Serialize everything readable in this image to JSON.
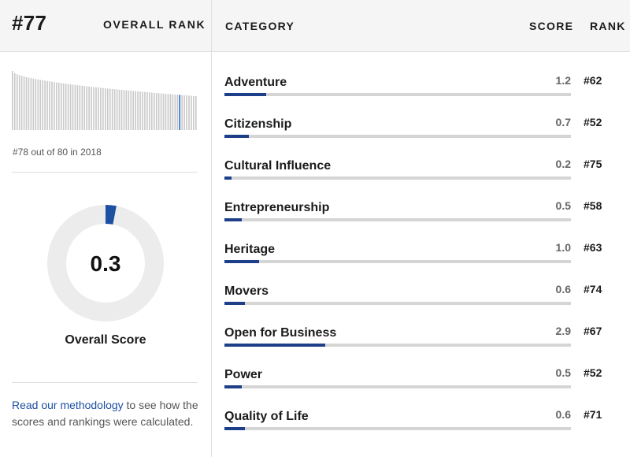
{
  "header": {
    "rank": "#77",
    "overall_rank_label": "OVERALL RANK",
    "category_label": "CATEGORY",
    "score_label": "SCORE",
    "rank_label": "RANK"
  },
  "left": {
    "histogram_caption": "#78 out of 80 in 2018",
    "histogram": {
      "total": 80,
      "highlight_position": 72
    },
    "score_value": "0.3",
    "score_fraction": 0.03,
    "score_label": "Overall Score",
    "methodology_link": "Read our methodology",
    "methodology_text": " to see how the scores and rankings were calculated."
  },
  "categories": [
    {
      "name": "Adventure",
      "score": "1.2",
      "rank": "#62",
      "fill": 0.12
    },
    {
      "name": "Citizenship",
      "score": "0.7",
      "rank": "#52",
      "fill": 0.07
    },
    {
      "name": "Cultural Influence",
      "score": "0.2",
      "rank": "#75",
      "fill": 0.02
    },
    {
      "name": "Entrepreneurship",
      "score": "0.5",
      "rank": "#58",
      "fill": 0.05
    },
    {
      "name": "Heritage",
      "score": "1.0",
      "rank": "#63",
      "fill": 0.1
    },
    {
      "name": "Movers",
      "score": "0.6",
      "rank": "#74",
      "fill": 0.06
    },
    {
      "name": "Open for Business",
      "score": "2.9",
      "rank": "#67",
      "fill": 0.29
    },
    {
      "name": "Power",
      "score": "0.5",
      "rank": "#52",
      "fill": 0.05
    },
    {
      "name": "Quality of Life",
      "score": "0.6",
      "rank": "#71",
      "fill": 0.06
    }
  ],
  "colors": {
    "accent": "#1d3f89",
    "highlight": "#2563c9",
    "track": "#d5d5d5",
    "link": "#1d4fa3"
  }
}
